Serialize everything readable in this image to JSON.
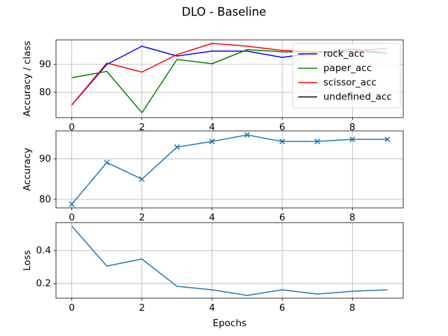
{
  "title": "DLO - Baseline",
  "chart_data": [
    {
      "type": "line",
      "ylabel": "Accuracy / class",
      "x": [
        0,
        1,
        2,
        3,
        4,
        5,
        6,
        7,
        8,
        9
      ],
      "series": [
        {
          "name": "rock_acc",
          "color": "#0000ff",
          "values": [
            75.5,
            90,
            96.5,
            93,
            94.75,
            94.75,
            92.5,
            94.25,
            95.5,
            94
          ]
        },
        {
          "name": "paper_acc",
          "color": "#008000",
          "values": [
            85.25,
            87.5,
            72.75,
            91.75,
            90.25,
            95.25,
            94.5,
            94.25,
            94.5,
            94
          ]
        },
        {
          "name": "scissor_acc",
          "color": "#ff0000",
          "values": [
            75.5,
            90.5,
            87.25,
            93.5,
            97.5,
            96.5,
            95,
            94.5,
            94.75,
            95.75
          ]
        },
        {
          "name": "undefined_acc",
          "color": "#000000",
          "values": [
            null,
            null,
            null,
            null,
            null,
            null,
            null,
            null,
            null,
            null
          ]
        }
      ],
      "xlim": [
        -0.45,
        9.45
      ],
      "xticks": [
        0,
        2,
        4,
        6,
        8
      ],
      "ylim": [
        71,
        98.75
      ],
      "yticks": [
        80,
        90
      ],
      "grid": true,
      "legend": "upper right"
    },
    {
      "type": "line",
      "ylabel": "Accuracy",
      "x": [
        0,
        1,
        2,
        3,
        4,
        5,
        6,
        7,
        8,
        9
      ],
      "series": [
        {
          "color": "#1f77b4",
          "marker": "x",
          "values": [
            78.8,
            89.1,
            85,
            92.9,
            94.3,
            95.9,
            94.3,
            94.3,
            94.8,
            94.8
          ]
        }
      ],
      "xlim": [
        -0.45,
        9.45
      ],
      "xticks": [
        0,
        2,
        4,
        6,
        8
      ],
      "ylim": [
        77.9,
        96.9
      ],
      "yticks": [
        80,
        90
      ],
      "grid": true
    },
    {
      "type": "line",
      "ylabel": "Loss",
      "xlabel": "Epochs",
      "x": [
        0,
        1,
        2,
        3,
        4,
        5,
        6,
        7,
        8,
        9
      ],
      "series": [
        {
          "color": "#1f77b4",
          "values": [
            0.549,
            0.306,
            0.349,
            0.183,
            0.162,
            0.128,
            0.162,
            0.136,
            0.153,
            0.162
          ]
        }
      ],
      "xlim": [
        -0.45,
        9.45
      ],
      "xticks": [
        0,
        2,
        4,
        6,
        8
      ],
      "ylim": [
        0.111,
        0.57
      ],
      "yticks": [
        0.2,
        0.4
      ],
      "grid": true
    }
  ]
}
